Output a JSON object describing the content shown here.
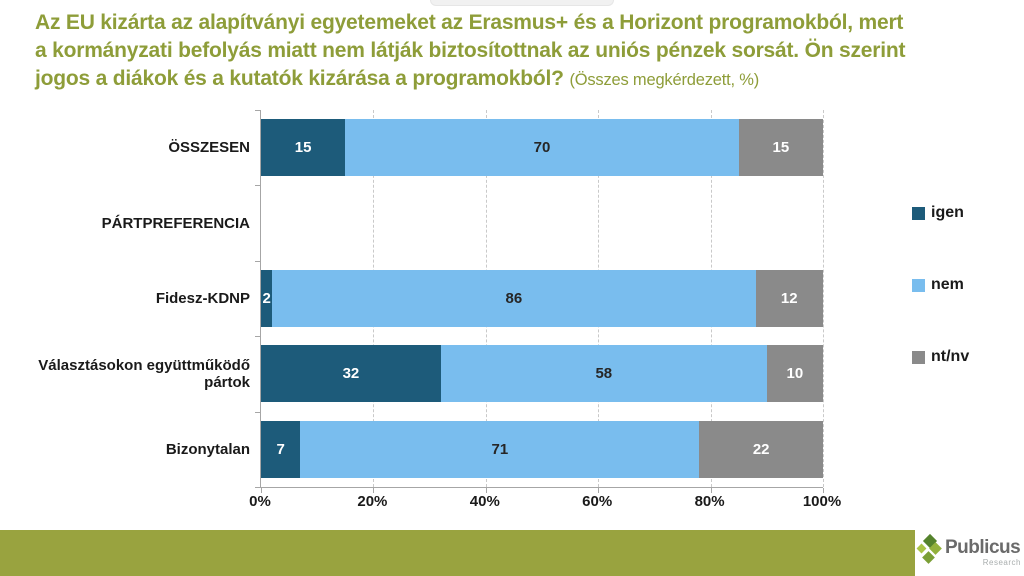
{
  "title": {
    "lines": [
      "Az EU kizárta az alapítványi egyetemeket az Erasmus+ és a Horizont programokból, mert",
      "a kormányzati befolyás miatt nem látják biztosítottnak az uniós pénzek sorsát. Ön szerint",
      "jogos a diákok és a kutatók kizárása a programokból?"
    ],
    "subtitle": "(Összes megkérdezett, %)"
  },
  "chart_data": {
    "type": "bar",
    "orientation": "horizontal-stacked",
    "categories": [
      "ÖSSZESEN",
      "PÁRTPREFERENCIA",
      "Fidesz-KDNP",
      "Választásokon együttműködő pártok",
      "Bizonytalan"
    ],
    "series": [
      {
        "name": "igen",
        "color": "#1d5b7a",
        "label_color": "#ffffff",
        "values": [
          15,
          null,
          2,
          32,
          7
        ]
      },
      {
        "name": "nem",
        "color": "#79bdee",
        "label_color": "#262626",
        "values": [
          70,
          null,
          86,
          58,
          71
        ]
      },
      {
        "name": "nt/nv",
        "color": "#8a8a8a",
        "label_color": "#ffffff",
        "values": [
          15,
          null,
          12,
          10,
          22
        ]
      }
    ],
    "x_ticks": [
      "0%",
      "20%",
      "40%",
      "60%",
      "80%",
      "100%"
    ],
    "xlim": [
      0,
      100
    ],
    "grid": "dashed-vertical",
    "legend_position": "right",
    "note": "PÁRTPREFERENCIA is a section header row with no bar"
  },
  "footer": {
    "logo_text": "Publicus",
    "logo_subtext": "Research"
  },
  "colors": {
    "title_green": "#8e9d39",
    "footer_olive": "#99a33f",
    "axis_gray": "#a6a6a6",
    "grid_gray": "#c9c9c9"
  }
}
